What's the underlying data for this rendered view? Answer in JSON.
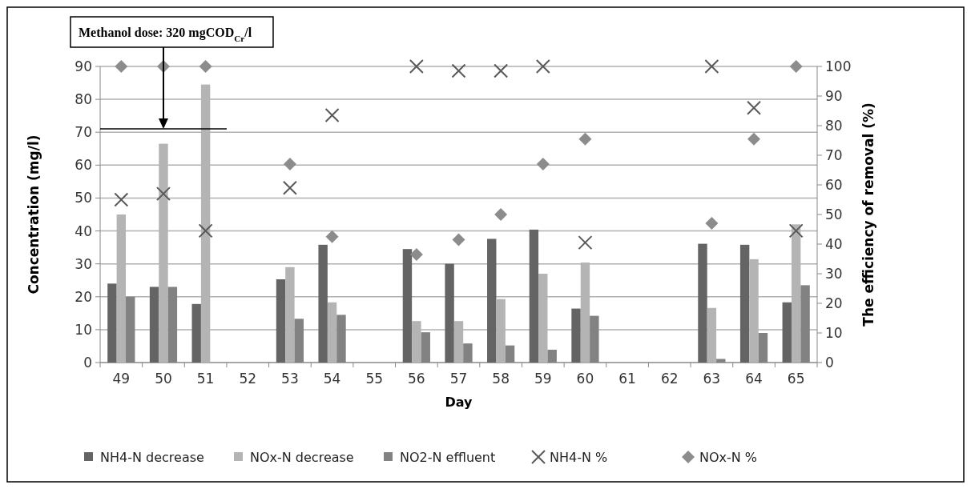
{
  "chart_data": {
    "type": "bar",
    "xlabel": "Day",
    "ylabel": "Concentration (mg/l)",
    "y2label": "The efficiency of removal (%)",
    "categories": [
      "49",
      "50",
      "51",
      "52",
      "53",
      "54",
      "55",
      "56",
      "57",
      "58",
      "59",
      "60",
      "61",
      "62",
      "63",
      "64",
      "65"
    ],
    "series": [
      {
        "name": "NH4-N decrease",
        "color": "#646464",
        "values": [
          24,
          23,
          17.8,
          null,
          25.3,
          35.8,
          null,
          34.5,
          30,
          37.6,
          40.4,
          16.4,
          null,
          null,
          36.1,
          35.8,
          18.3
        ]
      },
      {
        "name": "NOx-N decrease",
        "color": "#b4b4b4",
        "values": [
          45,
          66.5,
          84.5,
          null,
          29,
          18.3,
          null,
          12.6,
          12.6,
          19.3,
          27,
          30.4,
          null,
          null,
          16.6,
          31.4,
          42
        ]
      },
      {
        "name": "NO2-N effluent",
        "color": "#828282",
        "values": [
          20,
          23,
          null,
          null,
          13.3,
          14.5,
          null,
          9.2,
          5.8,
          5.2,
          3.9,
          14.2,
          null,
          null,
          1.1,
          9,
          23.5
        ]
      },
      {
        "name": "NH4-N %",
        "type": "scatter",
        "axis": "y2",
        "marker": "cross",
        "color": "#595959",
        "values": [
          55,
          57,
          44.5,
          null,
          59,
          83.5,
          null,
          100,
          98.5,
          98.5,
          100,
          40.5,
          null,
          null,
          100,
          86,
          44.5
        ]
      },
      {
        "name": "NOx-N %",
        "type": "scatter",
        "axis": "y2",
        "marker": "diamond",
        "color": "#8c8c8c",
        "values": [
          100,
          100,
          100,
          null,
          67,
          42.5,
          null,
          36.5,
          41.5,
          50,
          67,
          75.5,
          null,
          null,
          47,
          75.5,
          100
        ]
      }
    ],
    "ylim": [
      0,
      90
    ],
    "yticks": [
      0,
      10,
      20,
      30,
      40,
      50,
      60,
      70,
      80,
      90
    ],
    "y2lim": [
      0,
      100
    ],
    "y2ticks": [
      0,
      10,
      20,
      30,
      40,
      50,
      60,
      70,
      80,
      90,
      100
    ],
    "grid": "y",
    "legend": "bottom",
    "annotations": [
      "Methanol dose: 320 mgCOD$_{Cr}$/l"
    ]
  }
}
